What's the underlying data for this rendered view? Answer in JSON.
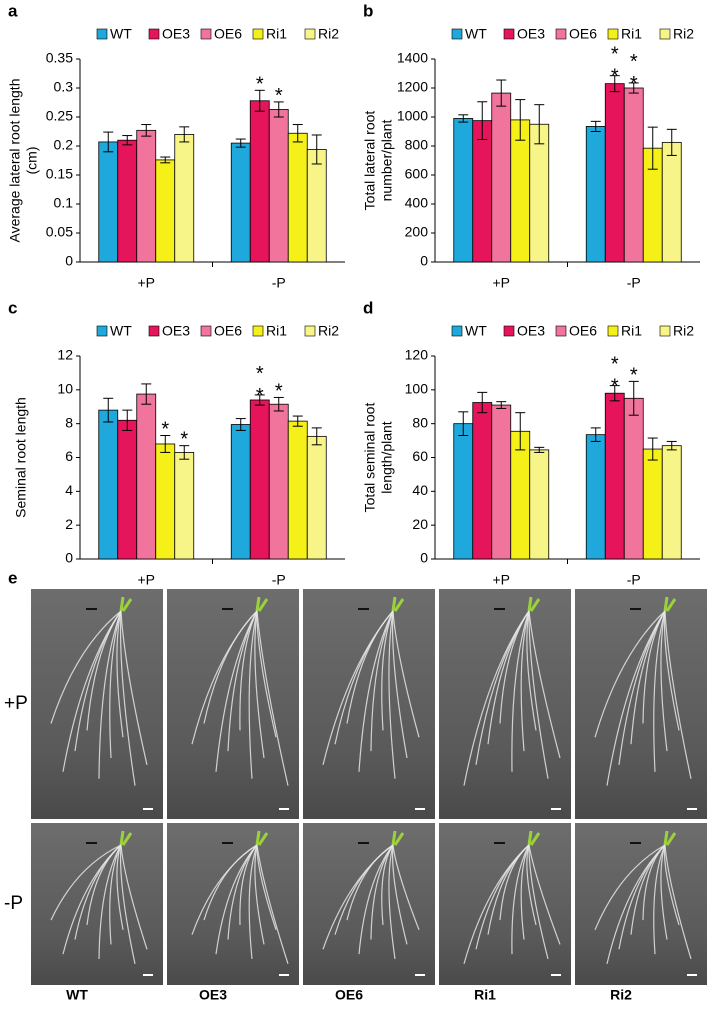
{
  "chart_data": [
    {
      "type": "bar",
      "panel": "a",
      "ylabel": [
        "Average lateral root length",
        "(cm)"
      ],
      "categories": [
        "+P",
        "-P"
      ],
      "ylim": [
        0,
        0.35
      ],
      "yticks": [
        0,
        0.05,
        0.1,
        0.15,
        0.2,
        0.25,
        0.3,
        0.35
      ],
      "series": [
        {
          "name": "WT",
          "color": "#1fa8dc",
          "values": [
            0.207,
            0.205
          ],
          "errors": [
            0.017,
            0.007
          ],
          "significance": [
            null,
            null
          ]
        },
        {
          "name": "OE3",
          "color": "#e6145a",
          "values": [
            0.21,
            0.278
          ],
          "errors": [
            0.008,
            0.018
          ],
          "significance": [
            null,
            "*"
          ]
        },
        {
          "name": "OE6",
          "color": "#f0749b",
          "values": [
            0.227,
            0.263
          ],
          "errors": [
            0.01,
            0.013
          ],
          "significance": [
            null,
            "*"
          ]
        },
        {
          "name": "Ri1",
          "color": "#f5f018",
          "values": [
            0.176,
            0.222
          ],
          "errors": [
            0.005,
            0.015
          ],
          "significance": [
            null,
            null
          ]
        },
        {
          "name": "Ri2",
          "color": "#f7f587",
          "values": [
            0.22,
            0.194
          ],
          "errors": [
            0.013,
            0.025
          ],
          "significance": [
            null,
            null
          ]
        }
      ]
    },
    {
      "type": "bar",
      "panel": "b",
      "ylabel": [
        "Total lateral root",
        "number/plant"
      ],
      "categories": [
        "+P",
        "-P"
      ],
      "ylim": [
        0,
        1400
      ],
      "yticks": [
        0,
        200,
        400,
        600,
        800,
        1000,
        1200,
        1400
      ],
      "series": [
        {
          "name": "WT",
          "color": "#1fa8dc",
          "values": [
            990,
            935
          ],
          "errors": [
            25,
            35
          ],
          "significance": [
            null,
            null
          ]
        },
        {
          "name": "OE3",
          "color": "#e6145a",
          "values": [
            975,
            1230
          ],
          "errors": [
            130,
            55
          ],
          "significance": [
            null,
            "**"
          ]
        },
        {
          "name": "OE6",
          "color": "#f0749b",
          "values": [
            1165,
            1200
          ],
          "errors": [
            90,
            35
          ],
          "significance": [
            null,
            "**"
          ]
        },
        {
          "name": "Ri1",
          "color": "#f5f018",
          "values": [
            980,
            785
          ],
          "errors": [
            140,
            145
          ],
          "significance": [
            null,
            null
          ]
        },
        {
          "name": "Ri2",
          "color": "#f7f587",
          "values": [
            950,
            825
          ],
          "errors": [
            135,
            90
          ],
          "significance": [
            null,
            null
          ]
        }
      ]
    },
    {
      "type": "bar",
      "panel": "c",
      "ylabel": [
        "Seminal root length"
      ],
      "categories": [
        "+P",
        "-P"
      ],
      "ylim": [
        0,
        12
      ],
      "yticks": [
        0,
        2,
        4,
        6,
        8,
        10,
        12
      ],
      "series": [
        {
          "name": "WT",
          "color": "#1fa8dc",
          "values": [
            8.8,
            7.95
          ],
          "errors": [
            0.7,
            0.35
          ],
          "significance": [
            null,
            null
          ]
        },
        {
          "name": "OE3",
          "color": "#e6145a",
          "values": [
            8.2,
            9.4
          ],
          "errors": [
            0.6,
            0.3
          ],
          "significance": [
            null,
            "**"
          ]
        },
        {
          "name": "OE6",
          "color": "#f0749b",
          "values": [
            9.75,
            9.15
          ],
          "errors": [
            0.6,
            0.4
          ],
          "significance": [
            null,
            "*"
          ]
        },
        {
          "name": "Ri1",
          "color": "#f5f018",
          "values": [
            6.8,
            8.15
          ],
          "errors": [
            0.5,
            0.3
          ],
          "significance": [
            "*",
            null
          ]
        },
        {
          "name": "Ri2",
          "color": "#f7f587",
          "values": [
            6.3,
            7.25
          ],
          "errors": [
            0.4,
            0.5
          ],
          "significance": [
            "*",
            null
          ]
        }
      ]
    },
    {
      "type": "bar",
      "panel": "d",
      "ylabel": [
        "Total seminal root",
        "length/plant"
      ],
      "categories": [
        "+P",
        "-P"
      ],
      "ylim": [
        0,
        120
      ],
      "yticks": [
        0,
        20,
        40,
        60,
        80,
        100,
        120
      ],
      "series": [
        {
          "name": "WT",
          "color": "#1fa8dc",
          "values": [
            80,
            73.5
          ],
          "errors": [
            7,
            4
          ],
          "significance": [
            null,
            null
          ]
        },
        {
          "name": "OE3",
          "color": "#e6145a",
          "values": [
            92.5,
            98
          ],
          "errors": [
            6,
            4.5
          ],
          "significance": [
            null,
            "**"
          ]
        },
        {
          "name": "OE6",
          "color": "#f0749b",
          "values": [
            91,
            95
          ],
          "errors": [
            2,
            10
          ],
          "significance": [
            null,
            "*"
          ]
        },
        {
          "name": "Ri1",
          "color": "#f5f018",
          "values": [
            75.5,
            65
          ],
          "errors": [
            11,
            6.5
          ],
          "significance": [
            null,
            null
          ]
        },
        {
          "name": "Ri2",
          "color": "#f7f587",
          "values": [
            64.5,
            67
          ],
          "errors": [
            1.5,
            2.5
          ],
          "significance": [
            null,
            null
          ]
        }
      ]
    }
  ],
  "photo_panel": {
    "panel": "e",
    "rows": [
      "+P",
      "-P"
    ],
    "columns": [
      "WT",
      "OE3",
      "OE6",
      "Ri1",
      "Ri2"
    ]
  }
}
